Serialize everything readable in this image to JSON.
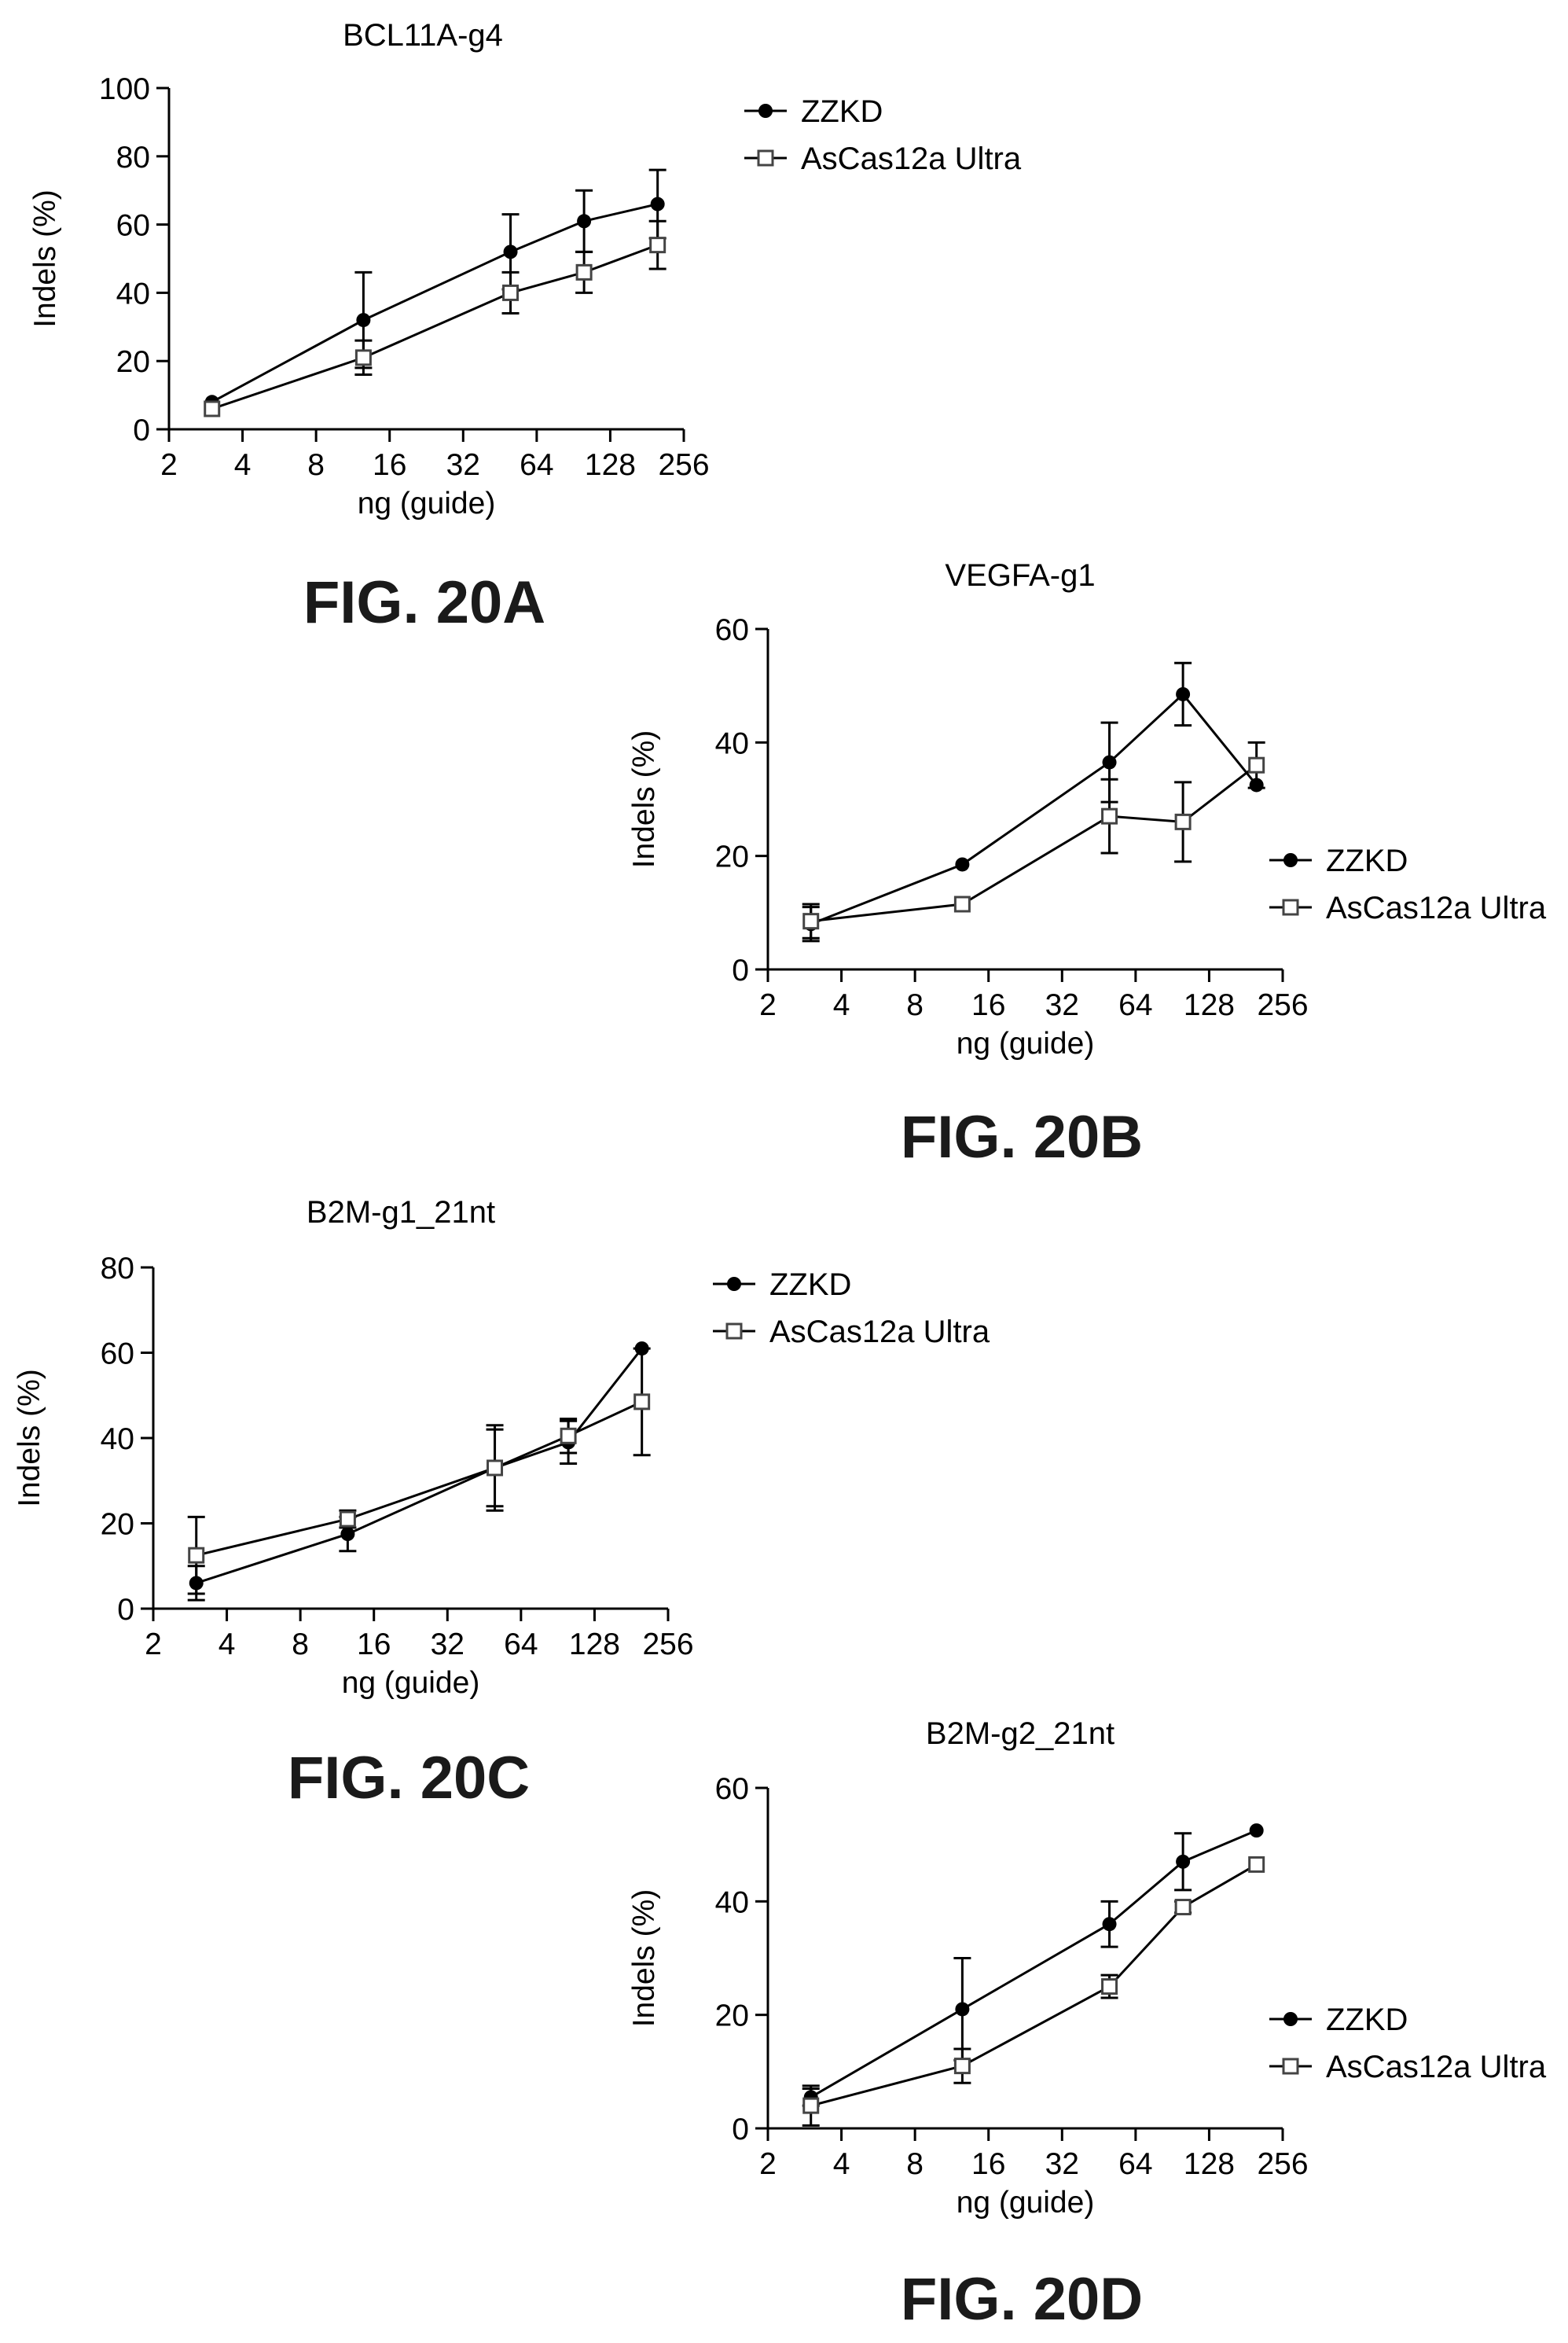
{
  "chart_data": [
    {
      "type": "line",
      "title": "BCL11A-g4",
      "figure_label": "FIG. 20A",
      "xlabel": "ng (guide)",
      "ylabel": "Indels (%)",
      "x_scale": "log2",
      "xlim": [
        2,
        256
      ],
      "ylim": [
        0,
        100
      ],
      "x_ticks": [
        "2",
        "4",
        "8",
        "16",
        "32",
        "64",
        "128",
        "256"
      ],
      "y_ticks": [
        "0",
        "20",
        "40",
        "60",
        "80",
        "100"
      ],
      "legend_position": "top-right, outside plot",
      "x": [
        3,
        12.5,
        50,
        100,
        200
      ],
      "series": [
        {
          "name": "ZZKD",
          "marker": "filled-circle",
          "values": [
            8,
            32,
            52,
            61,
            66
          ],
          "errors": [
            0,
            14,
            11,
            9,
            10
          ]
        },
        {
          "name": "AsCas12a Ultra",
          "marker": "open-square",
          "values": [
            6,
            21,
            40,
            46,
            54
          ],
          "errors": [
            0,
            5,
            6,
            6,
            7
          ]
        }
      ]
    },
    {
      "type": "line",
      "title": "VEGFA-g1",
      "figure_label": "FIG. 20B",
      "xlabel": "ng (guide)",
      "ylabel": "Indels (%)",
      "x_scale": "log2",
      "xlim": [
        2,
        256
      ],
      "ylim": [
        0,
        60
      ],
      "x_ticks": [
        "2",
        "4",
        "8",
        "16",
        "32",
        "64",
        "128",
        "256"
      ],
      "y_ticks": [
        "0",
        "20",
        "40",
        "60"
      ],
      "legend_position": "right, outside plot",
      "x": [
        3,
        12.5,
        50,
        100,
        200
      ],
      "series": [
        {
          "name": "ZZKD",
          "marker": "filled-circle",
          "values": [
            8,
            18.5,
            36.5,
            48.5,
            32.5
          ],
          "errors": [
            3,
            0,
            7,
            5.5,
            0
          ]
        },
        {
          "name": "AsCas12a Ultra",
          "marker": "open-square",
          "values": [
            8.5,
            11.5,
            27,
            26,
            36
          ],
          "errors": [
            3,
            0,
            6.5,
            7,
            4
          ]
        }
      ]
    },
    {
      "type": "line",
      "title": "B2M-g1_21nt",
      "figure_label": "FIG. 20C",
      "xlabel": "ng (guide)",
      "ylabel": "Indels (%)",
      "x_scale": "log2",
      "xlim": [
        2,
        256
      ],
      "ylim": [
        0,
        80
      ],
      "x_ticks": [
        "2",
        "4",
        "8",
        "16",
        "32",
        "64",
        "128",
        "256"
      ],
      "y_ticks": [
        "0",
        "20",
        "40",
        "60",
        "80"
      ],
      "legend_position": "top-right, outside plot",
      "x": [
        3,
        12.5,
        50,
        100,
        200
      ],
      "series": [
        {
          "name": "ZZKD",
          "marker": "filled-circle",
          "values": [
            6,
            17.5,
            33,
            39,
            61
          ],
          "errors": [
            4,
            4,
            10,
            5,
            0
          ]
        },
        {
          "name": "AsCas12a Ultra",
          "marker": "open-square",
          "values": [
            12.5,
            21,
            33,
            40.5,
            48.5
          ],
          "errors": [
            9,
            2,
            9,
            4,
            12.5
          ]
        }
      ]
    },
    {
      "type": "line",
      "title": "B2M-g2_21nt",
      "figure_label": "FIG. 20D",
      "xlabel": "ng (guide)",
      "ylabel": "Indels (%)",
      "x_scale": "log2",
      "xlim": [
        2,
        256
      ],
      "ylim": [
        0,
        60
      ],
      "x_ticks": [
        "2",
        "4",
        "8",
        "16",
        "32",
        "64",
        "128",
        "256"
      ],
      "y_ticks": [
        "0",
        "20",
        "40",
        "60"
      ],
      "legend_position": "right, outside plot",
      "x": [
        3,
        12.5,
        50,
        100,
        200
      ],
      "series": [
        {
          "name": "ZZKD",
          "marker": "filled-circle",
          "values": [
            5.5,
            21,
            36,
            47,
            52.5
          ],
          "errors": [
            1.5,
            9,
            4,
            5,
            0
          ]
        },
        {
          "name": "AsCas12a Ultra",
          "marker": "open-square",
          "values": [
            4,
            11,
            25,
            39,
            46.5
          ],
          "errors": [
            3.5,
            3,
            2,
            1,
            0
          ]
        }
      ]
    }
  ]
}
